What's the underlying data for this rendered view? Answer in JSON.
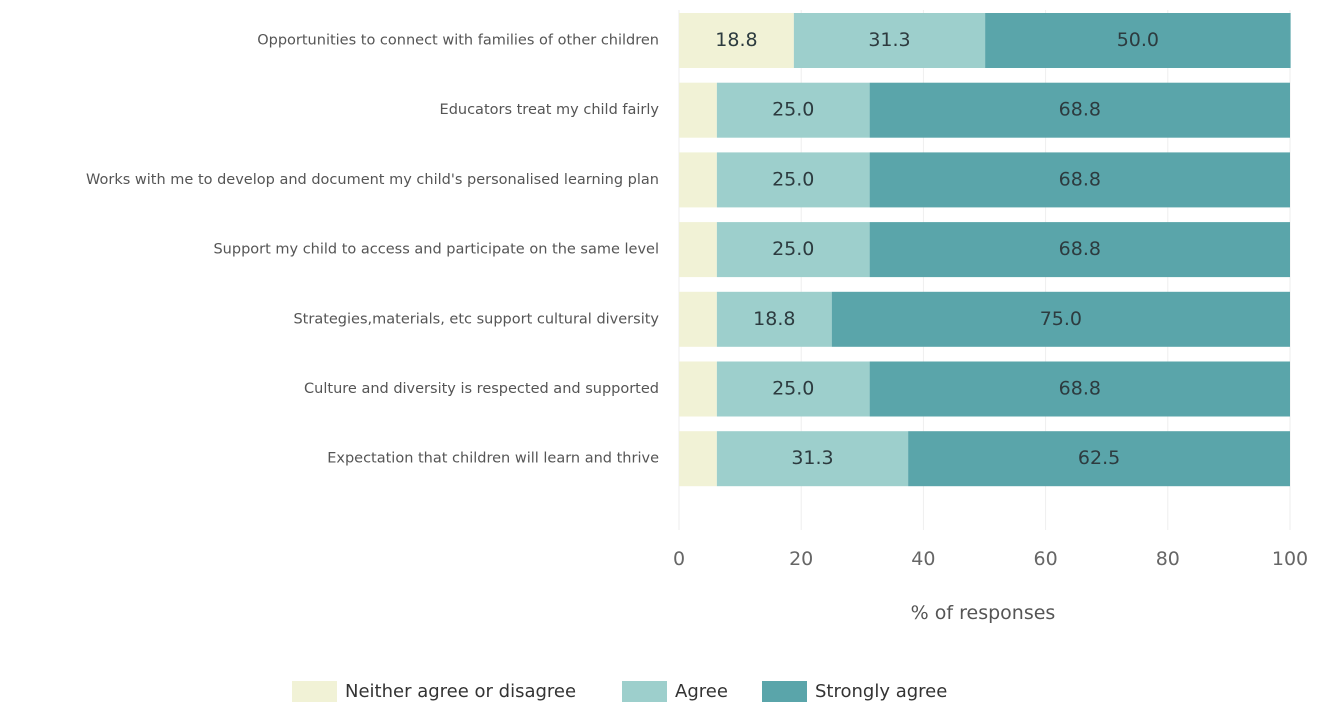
{
  "chart_data": {
    "type": "bar",
    "orientation": "horizontal",
    "stacked": true,
    "categories": [
      "Opportunities to connect with families of other children",
      "Educators treat my child fairly",
      "Works with me to develop and document my child's personalised learning plan",
      "Support my child to access and participate on the same level",
      "Strategies,materials, etc support cultural diversity",
      "Culture and diversity is respected and supported",
      "Expectation that children will learn and thrive"
    ],
    "series": [
      {
        "name": "Neither agree or disagree",
        "color": "#f1f2d6",
        "values": [
          18.8,
          6.2,
          6.2,
          6.2,
          6.2,
          6.2,
          6.2
        ],
        "labels": [
          "18.8",
          "",
          "",
          "",
          "",
          "",
          ""
        ]
      },
      {
        "name": "Agree",
        "color": "#9dcfcc",
        "values": [
          31.3,
          25.0,
          25.0,
          25.0,
          18.8,
          25.0,
          31.3
        ],
        "labels": [
          "31.3",
          "25.0",
          "25.0",
          "25.0",
          "18.8",
          "25.0",
          "31.3"
        ]
      },
      {
        "name": "Strongly agree",
        "color": "#5aa5aa",
        "values": [
          50.0,
          68.8,
          68.8,
          68.8,
          75.0,
          68.8,
          62.5
        ],
        "labels": [
          "50.0",
          "68.8",
          "68.8",
          "68.8",
          "75.0",
          "68.8",
          "62.5"
        ]
      }
    ],
    "xlabel": "% of responses",
    "ylabel": "",
    "xlim": [
      0,
      100
    ],
    "xticks": [
      "0",
      "20",
      "40",
      "60",
      "80",
      "100"
    ],
    "grid": true,
    "legend_position": "bottom"
  }
}
